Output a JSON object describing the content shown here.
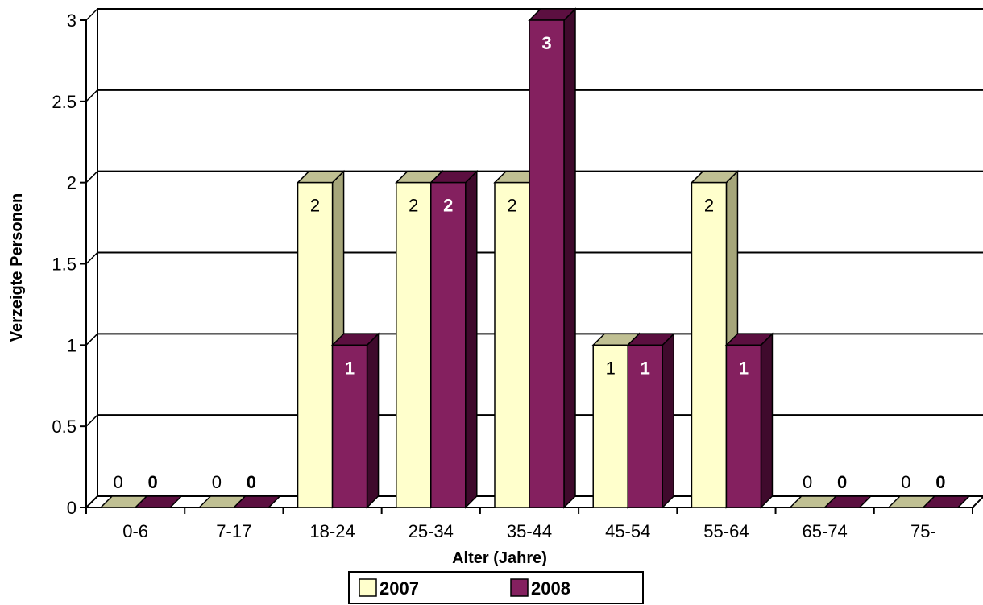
{
  "chart_data": {
    "type": "bar",
    "three_d": true,
    "title": "",
    "xlabel": "Alter (Jahre)",
    "ylabel": "Verzeigte Personen",
    "ylim": [
      0,
      3
    ],
    "yticks": [
      "0",
      "0.5",
      "1",
      "1.5",
      "2",
      "2.5",
      "3"
    ],
    "grid": true,
    "legend_position": "bottom",
    "categories": [
      "0-6",
      "7-17",
      "18-24",
      "25-34",
      "35-44",
      "45-54",
      "55-64",
      "65-74",
      "75-"
    ],
    "series": [
      {
        "name": "2007",
        "values": [
          0,
          0,
          2,
          2,
          2,
          1,
          2,
          0,
          0
        ],
        "labels": [
          "0",
          "0",
          "2",
          "2",
          "2",
          "1",
          "2",
          "0",
          "0"
        ],
        "color": "#FFFFCC",
        "top_color": "#C0C093",
        "side_color": "#A6A67A"
      },
      {
        "name": "2008",
        "values": [
          0,
          0,
          1,
          2,
          3,
          1,
          1,
          0,
          0
        ],
        "labels": [
          "0",
          "0",
          "1",
          "2",
          "3",
          "1",
          "1",
          "0",
          "0"
        ],
        "color": "#84205F",
        "top_color": "#5C0F40",
        "side_color": "#3F0A2C"
      }
    ]
  }
}
